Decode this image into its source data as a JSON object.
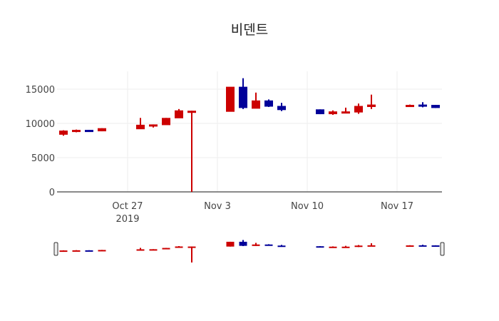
{
  "chart_data": {
    "type": "candlestick",
    "title": "비덴트",
    "xlabel": "",
    "ylabel": "",
    "ylim": [
      0,
      17500
    ],
    "yticks": [
      0,
      5000,
      10000,
      15000
    ],
    "ytick_labels": [
      "0",
      "5000",
      "10000",
      "15000"
    ],
    "xticks": [
      {
        "date": "2019-10-27",
        "label": "Oct 27",
        "sublabel": "2019"
      },
      {
        "date": "2019-11-03",
        "label": "Nov 3",
        "sublabel": ""
      },
      {
        "date": "2019-11-10",
        "label": "Nov 10",
        "sublabel": ""
      },
      {
        "date": "2019-11-17",
        "label": "Nov 17",
        "sublabel": ""
      }
    ],
    "increasing_color": "#cc0000",
    "decreasing_color": "#000099",
    "grid": true,
    "rangeslider": true,
    "x": [
      "2019-10-22",
      "2019-10-23",
      "2019-10-24",
      "2019-10-25",
      "2019-10-28",
      "2019-10-29",
      "2019-10-30",
      "2019-10-31",
      "2019-11-01",
      "2019-11-04",
      "2019-11-05",
      "2019-11-06",
      "2019-11-07",
      "2019-11-08",
      "2019-11-11",
      "2019-11-12",
      "2019-11-13",
      "2019-11-14",
      "2019-11-15",
      "2019-11-18",
      "2019-11-19",
      "2019-11-20"
    ],
    "open": [
      8400,
      8800,
      9000,
      8900,
      9200,
      9650,
      9800,
      10800,
      11650,
      11750,
      15300,
      12200,
      13300,
      12500,
      12000,
      11400,
      11600,
      11650,
      12450,
      12550,
      12700,
      12650
    ],
    "high": [
      9000,
      9100,
      9050,
      9300,
      10800,
      9850,
      10800,
      12100,
      11850,
      15300,
      16600,
      14500,
      13500,
      13000,
      12050,
      11900,
      12300,
      12900,
      14200,
      12750,
      13100,
      12700
    ],
    "low": [
      8200,
      8700,
      8750,
      8850,
      9200,
      9400,
      9800,
      10800,
      0,
      11750,
      12100,
      12200,
      12400,
      11800,
      11350,
      11250,
      11600,
      11400,
      12100,
      12450,
      12350,
      12250
    ],
    "close": [
      8900,
      9000,
      8850,
      9250,
      9750,
      9800,
      10750,
      11850,
      11800,
      15300,
      12300,
      13300,
      12500,
      12000,
      11400,
      11700,
      11700,
      12500,
      12700,
      12650,
      12550,
      12300
    ]
  }
}
